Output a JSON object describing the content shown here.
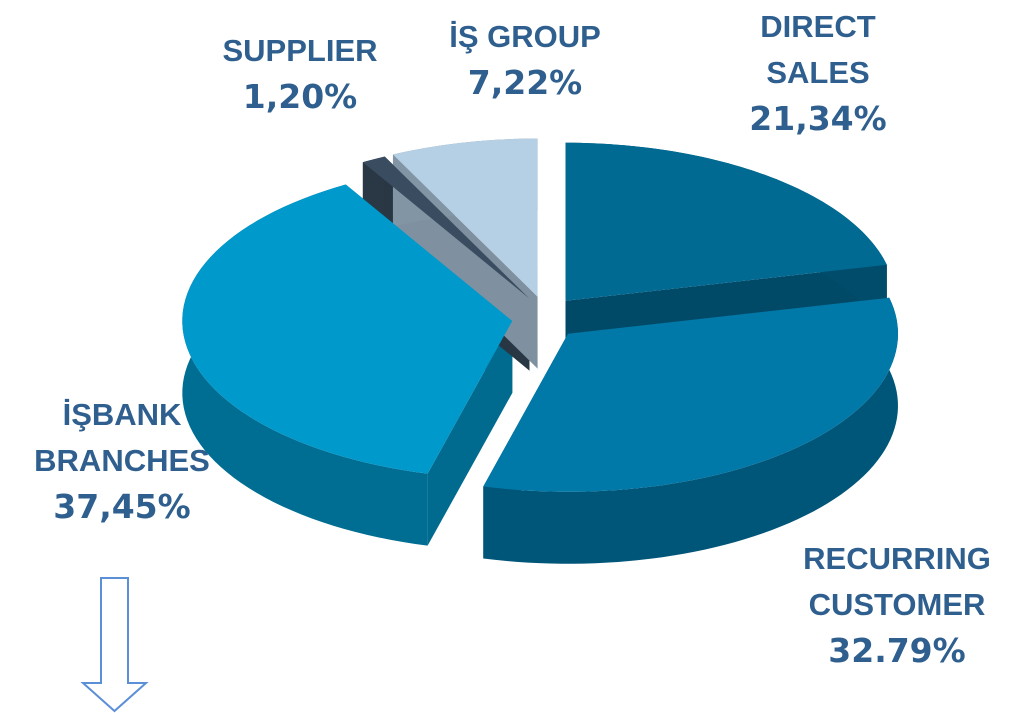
{
  "chart_data": {
    "type": "pie",
    "categories": [
      "DIRECT SALES",
      "RECURRING CUSTOMER",
      "İŞBANK BRANCHES",
      "SUPPLIER",
      "İŞ GROUP"
    ],
    "values": [
      21.34,
      32.79,
      37.45,
      1.2,
      7.22
    ],
    "value_labels": [
      "21,34%",
      "32.79%",
      "37,45%",
      "1,20%",
      "7,22%"
    ],
    "colors": [
      "#006a93",
      "#0078a8",
      "#0099cc",
      "#3a4d60",
      "#b5cfe4"
    ]
  }
}
